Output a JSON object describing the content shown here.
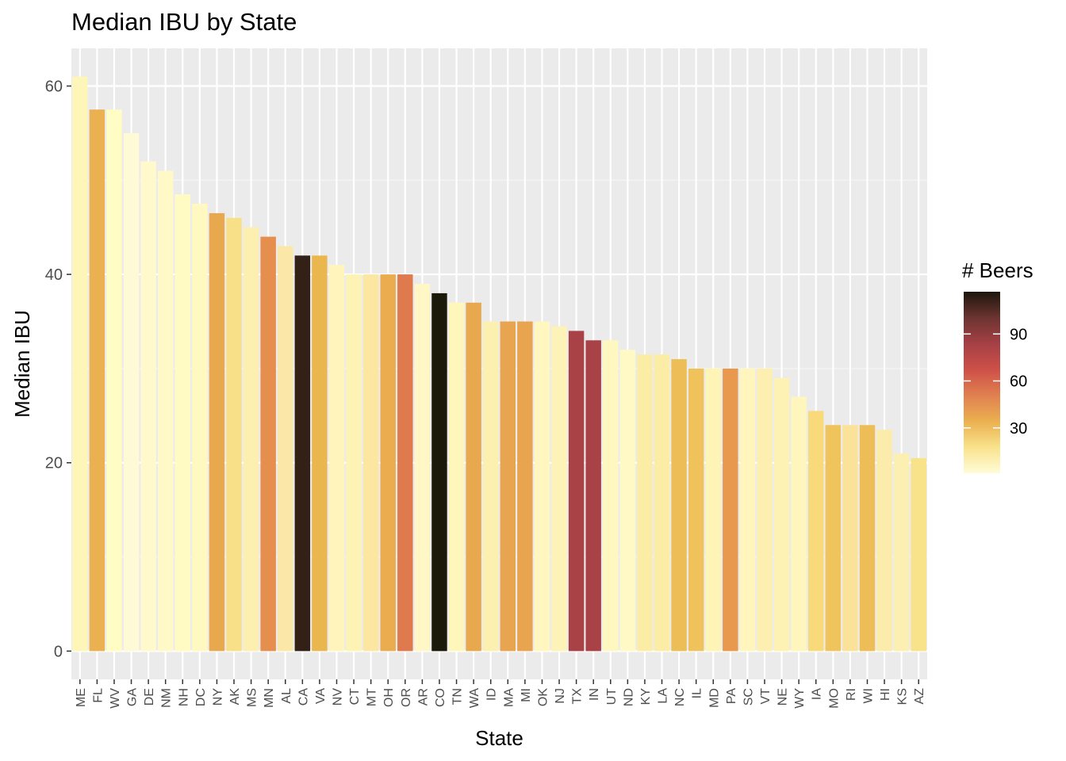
{
  "chart_data": {
    "type": "bar",
    "title": "Median IBU by State",
    "xlabel": "State",
    "ylabel": "Median IBU",
    "ylim": [
      -3,
      64
    ],
    "yticks": [
      0,
      20,
      40,
      60
    ],
    "grid": true,
    "categories": [
      "ME",
      "FL",
      "WV",
      "GA",
      "DE",
      "NM",
      "NH",
      "DC",
      "NY",
      "AK",
      "MS",
      "MN",
      "AL",
      "CA",
      "VA",
      "NV",
      "CT",
      "MT",
      "OH",
      "OR",
      "AR",
      "CO",
      "TN",
      "WA",
      "ID",
      "MA",
      "MI",
      "OK",
      "NJ",
      "TX",
      "IN",
      "UT",
      "ND",
      "KY",
      "LA",
      "NC",
      "IL",
      "MD",
      "PA",
      "SC",
      "VT",
      "NE",
      "WY",
      "IA",
      "MO",
      "RI",
      "WI",
      "HI",
      "KS",
      "AZ"
    ],
    "values": [
      61,
      57.5,
      57.5,
      55,
      52,
      51,
      48.5,
      47.5,
      46.5,
      46,
      45,
      44,
      43,
      42,
      42,
      41,
      40,
      40,
      40,
      40,
      39,
      38,
      37,
      37,
      35,
      35,
      35,
      35,
      34.5,
      34,
      33,
      33,
      32,
      31.5,
      31.5,
      31,
      30,
      30,
      30,
      30,
      30,
      29,
      27,
      25.5,
      24,
      24,
      24,
      23.5,
      21,
      20.5
    ],
    "colors": [
      "#fdf6b8",
      "#ebb04f",
      "#fffcc4",
      "#fffad6",
      "#fff9cc",
      "#fff9c8",
      "#fffbc2",
      "#fff8c0",
      "#e8a84e",
      "#f8e088",
      "#fcefb0",
      "#e58e4e",
      "#fbe8a8",
      "#332118",
      "#eab64e",
      "#fff4bc",
      "#fdf3b4",
      "#fbe6a2",
      "#ebac50",
      "#df7a4e",
      "#fff8c6",
      "#1b190a",
      "#fff6bc",
      "#e8a84e",
      "#fbf0b0",
      "#e8a44e",
      "#e8a44e",
      "#fff6c0",
      "#fdf2b8",
      "#a94247",
      "#a94247",
      "#fff7c0",
      "#fff9c6",
      "#fbeca6",
      "#fbeca6",
      "#edbe57",
      "#efc25b",
      "#fdf4b6",
      "#e8994e",
      "#fff5bd",
      "#fdefb0",
      "#fdf2b4",
      "#fff6bd",
      "#f8da7a",
      "#f0c45d",
      "#fae29a",
      "#edbe57",
      "#fbecab",
      "#fcefb2",
      "#f8e38b"
    ]
  },
  "legend": {
    "title": "# Beers",
    "ticks": [
      30,
      60,
      90
    ],
    "range": [
      1,
      117
    ],
    "placement": "right",
    "colors": [
      "#fffcd8",
      "#f9e28c",
      "#ebb04f",
      "#e08050",
      "#ce5048",
      "#a54045",
      "#6c3430",
      "#1c170c"
    ]
  }
}
